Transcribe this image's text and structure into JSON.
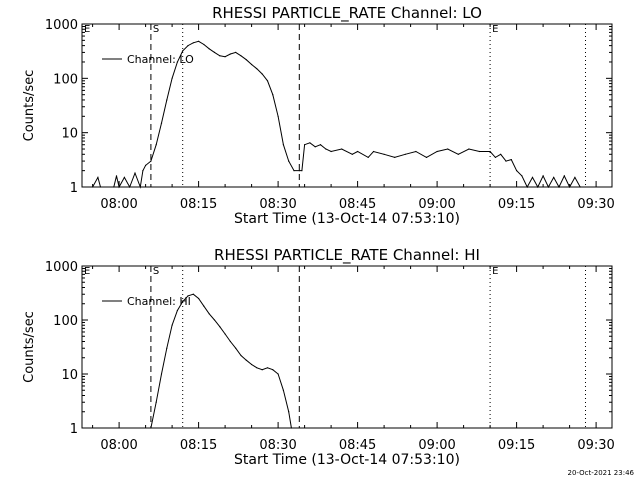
{
  "footer_timestamp": "20-Oct-2021 23:46",
  "chart_data": [
    {
      "type": "line",
      "title": "RHESSI PARTICLE_RATE Channel: LO",
      "xlabel": "Start Time (13-Oct-14 07:53:10)",
      "ylabel": "Counts/sec",
      "yscale": "log",
      "ylim": [
        1,
        1000
      ],
      "xlim": [
        "07:53",
        "09:33"
      ],
      "x_ticks": [
        "08:00",
        "08:15",
        "08:30",
        "08:45",
        "09:00",
        "09:15",
        "09:30"
      ],
      "y_ticks": [
        "1",
        "10",
        "100",
        "1000"
      ],
      "legend": "Channel: LO",
      "legend_placement": "top-left",
      "markers": [
        {
          "label": "E",
          "time": "07:53",
          "style": "dotted"
        },
        {
          "label": "S",
          "time": "08:06",
          "style": "dashed"
        },
        {
          "label": "",
          "time": "08:12",
          "style": "dotted"
        },
        {
          "label": "",
          "time": "08:34",
          "style": "dashed"
        },
        {
          "label": "E",
          "time": "09:10",
          "style": "dotted"
        },
        {
          "label": "",
          "time": "09:28",
          "style": "dotted"
        }
      ],
      "series": [
        {
          "name": "Channel: LO",
          "points": [
            [
              "07:55",
              1
            ],
            [
              "07:56",
              1.5
            ],
            [
              "07:56.5",
              1
            ],
            [
              "07:59",
              1
            ],
            [
              "07:59.5",
              1.6
            ],
            [
              "08:00",
              1
            ],
            [
              "08:01",
              1.5
            ],
            [
              "08:02",
              1
            ],
            [
              "08:03",
              1.8
            ],
            [
              "08:04",
              1
            ],
            [
              "08:04.5",
              2
            ],
            [
              "08:05",
              2.5
            ],
            [
              "08:06",
              3
            ],
            [
              "08:07",
              6
            ],
            [
              "08:08",
              15
            ],
            [
              "08:09",
              40
            ],
            [
              "08:10",
              100
            ],
            [
              "08:11",
              200
            ],
            [
              "08:12",
              320
            ],
            [
              "08:13",
              400
            ],
            [
              "08:14",
              450
            ],
            [
              "08:15",
              480
            ],
            [
              "08:16",
              420
            ],
            [
              "08:17",
              350
            ],
            [
              "08:18",
              300
            ],
            [
              "08:19",
              260
            ],
            [
              "08:20",
              250
            ],
            [
              "08:21",
              280
            ],
            [
              "08:22",
              300
            ],
            [
              "08:23",
              260
            ],
            [
              "08:24",
              220
            ],
            [
              "08:25",
              180
            ],
            [
              "08:26",
              150
            ],
            [
              "08:27",
              120
            ],
            [
              "08:28",
              90
            ],
            [
              "08:29",
              50
            ],
            [
              "08:30",
              20
            ],
            [
              "08:31",
              6
            ],
            [
              "08:32",
              3
            ],
            [
              "08:33",
              2
            ],
            [
              "08:34",
              2
            ],
            [
              "08:34.5",
              2
            ],
            [
              "08:35",
              6
            ],
            [
              "08:36",
              6.5
            ],
            [
              "08:37",
              5.5
            ],
            [
              "08:38",
              6
            ],
            [
              "08:39",
              5
            ],
            [
              "08:40",
              4.5
            ],
            [
              "08:42",
              5
            ],
            [
              "08:44",
              4
            ],
            [
              "08:45",
              4.5
            ],
            [
              "08:47",
              3.5
            ],
            [
              "08:48",
              4.5
            ],
            [
              "08:50",
              4
            ],
            [
              "08:52",
              3.5
            ],
            [
              "08:54",
              4
            ],
            [
              "08:56",
              4.5
            ],
            [
              "08:58",
              3.5
            ],
            [
              "09:00",
              4.5
            ],
            [
              "09:02",
              5
            ],
            [
              "09:04",
              4
            ],
            [
              "09:06",
              5
            ],
            [
              "09:08",
              4.5
            ],
            [
              "09:10",
              4.5
            ],
            [
              "09:11",
              3.5
            ],
            [
              "09:12",
              4
            ],
            [
              "09:13",
              3
            ],
            [
              "09:14",
              3.2
            ],
            [
              "09:15",
              2
            ],
            [
              "09:16",
              1.6
            ],
            [
              "09:17",
              1
            ],
            [
              "09:18",
              1.5
            ],
            [
              "09:19",
              1
            ],
            [
              "09:20",
              1.6
            ],
            [
              "09:21",
              1
            ],
            [
              "09:22",
              1.5
            ],
            [
              "09:23",
              1
            ],
            [
              "09:24",
              1.6
            ],
            [
              "09:25",
              1
            ],
            [
              "09:26",
              1.5
            ],
            [
              "09:27",
              1
            ]
          ]
        }
      ]
    },
    {
      "type": "line",
      "title": "RHESSI PARTICLE_RATE Channel: HI",
      "xlabel": "Start Time (13-Oct-14 07:53:10)",
      "ylabel": "Counts/sec",
      "yscale": "log",
      "ylim": [
        1,
        1000
      ],
      "xlim": [
        "07:53",
        "09:33"
      ],
      "x_ticks": [
        "08:00",
        "08:15",
        "08:30",
        "08:45",
        "09:00",
        "09:15",
        "09:30"
      ],
      "y_ticks": [
        "1",
        "10",
        "100",
        "1000"
      ],
      "legend": "Channel: HI",
      "legend_placement": "top-left",
      "markers": [
        {
          "label": "E",
          "time": "07:53",
          "style": "dotted"
        },
        {
          "label": "S",
          "time": "08:06",
          "style": "dashed"
        },
        {
          "label": "",
          "time": "08:12",
          "style": "dotted"
        },
        {
          "label": "",
          "time": "08:34",
          "style": "dashed"
        },
        {
          "label": "E",
          "time": "09:10",
          "style": "dotted"
        },
        {
          "label": "",
          "time": "09:28",
          "style": "dotted"
        }
      ],
      "series": [
        {
          "name": "Channel: HI",
          "points": [
            [
              "08:06",
              1
            ],
            [
              "08:07",
              3
            ],
            [
              "08:08",
              10
            ],
            [
              "08:09",
              30
            ],
            [
              "08:10",
              80
            ],
            [
              "08:11",
              150
            ],
            [
              "08:12",
              220
            ],
            [
              "08:13",
              280
            ],
            [
              "08:14",
              300
            ],
            [
              "08:15",
              250
            ],
            [
              "08:16",
              180
            ],
            [
              "08:17",
              130
            ],
            [
              "08:18",
              100
            ],
            [
              "08:19",
              75
            ],
            [
              "08:20",
              55
            ],
            [
              "08:21",
              40
            ],
            [
              "08:22",
              30
            ],
            [
              "08:23",
              22
            ],
            [
              "08:24",
              18
            ],
            [
              "08:25",
              15
            ],
            [
              "08:26",
              13
            ],
            [
              "08:27",
              12
            ],
            [
              "08:28",
              13
            ],
            [
              "08:29",
              12
            ],
            [
              "08:30",
              10
            ],
            [
              "08:31",
              5
            ],
            [
              "08:32",
              2
            ],
            [
              "08:32.5",
              1
            ]
          ]
        }
      ]
    }
  ]
}
